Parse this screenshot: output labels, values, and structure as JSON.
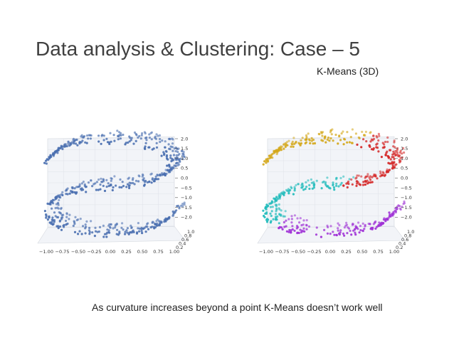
{
  "slide": {
    "title": "Data analysis & Clustering: Case – 5",
    "subtitle": "K-Means (3D)",
    "caption": "As curvature increases beyond a point K-Means doesn’t work well"
  },
  "chart_data": [
    {
      "type": "scatter",
      "title": "",
      "xlabel": "",
      "ylabel": "",
      "zlabel": "",
      "x_ticks": [
        "−1.00",
        "−0.75",
        "−0.50",
        "−0.25",
        "0.00",
        "0.25",
        "0.50",
        "0.75",
        "1.00"
      ],
      "y_ticks": [
        "1.0",
        "0.8",
        "0.6",
        "0.4",
        "0.2"
      ],
      "z_ticks": [
        "2.0",
        "1.5",
        "1.0",
        "0.5",
        "0.0",
        "−0.5",
        "−1.0",
        "−1.5",
        "−2.0"
      ],
      "xlim": [
        -1.0,
        1.0
      ],
      "ylim": [
        0.2,
        1.0
      ],
      "zlim": [
        -2.0,
        2.0
      ],
      "grid": true,
      "series": [
        {
          "color": "#4a6fb0",
          "shape": "s-curve",
          "t_range": [
            0.0,
            1.0
          ]
        }
      ]
    },
    {
      "type": "scatter",
      "title": "",
      "xlabel": "",
      "ylabel": "",
      "zlabel": "",
      "x_ticks": [
        "−1.00",
        "−0.75",
        "−0.50",
        "−0.25",
        "0.00",
        "0.25",
        "0.50",
        "0.75",
        "1.00"
      ],
      "y_ticks": [
        "1.0",
        "0.8",
        "0.6",
        "0.4",
        "0.2"
      ],
      "z_ticks": [
        "2.0",
        "1.5",
        "1.0",
        "0.5",
        "0.0",
        "−0.5",
        "−1.0",
        "−1.5",
        "−2.0"
      ],
      "xlim": [
        -1.0,
        1.0
      ],
      "ylim": [
        0.2,
        1.0
      ],
      "zlim": [
        -2.0,
        2.0
      ],
      "grid": true,
      "series": [
        {
          "color": "#a033d6",
          "shape": "s-curve",
          "t_range": [
            0.0,
            0.27
          ]
        },
        {
          "color": "#23bcbc",
          "shape": "s-curve",
          "t_range": [
            0.27,
            0.52
          ]
        },
        {
          "color": "#d42828",
          "shape": "s-curve",
          "t_range": [
            0.52,
            0.78
          ]
        },
        {
          "color": "#d4a81c",
          "shape": "s-curve",
          "t_range": [
            0.78,
            1.0
          ]
        }
      ]
    }
  ]
}
